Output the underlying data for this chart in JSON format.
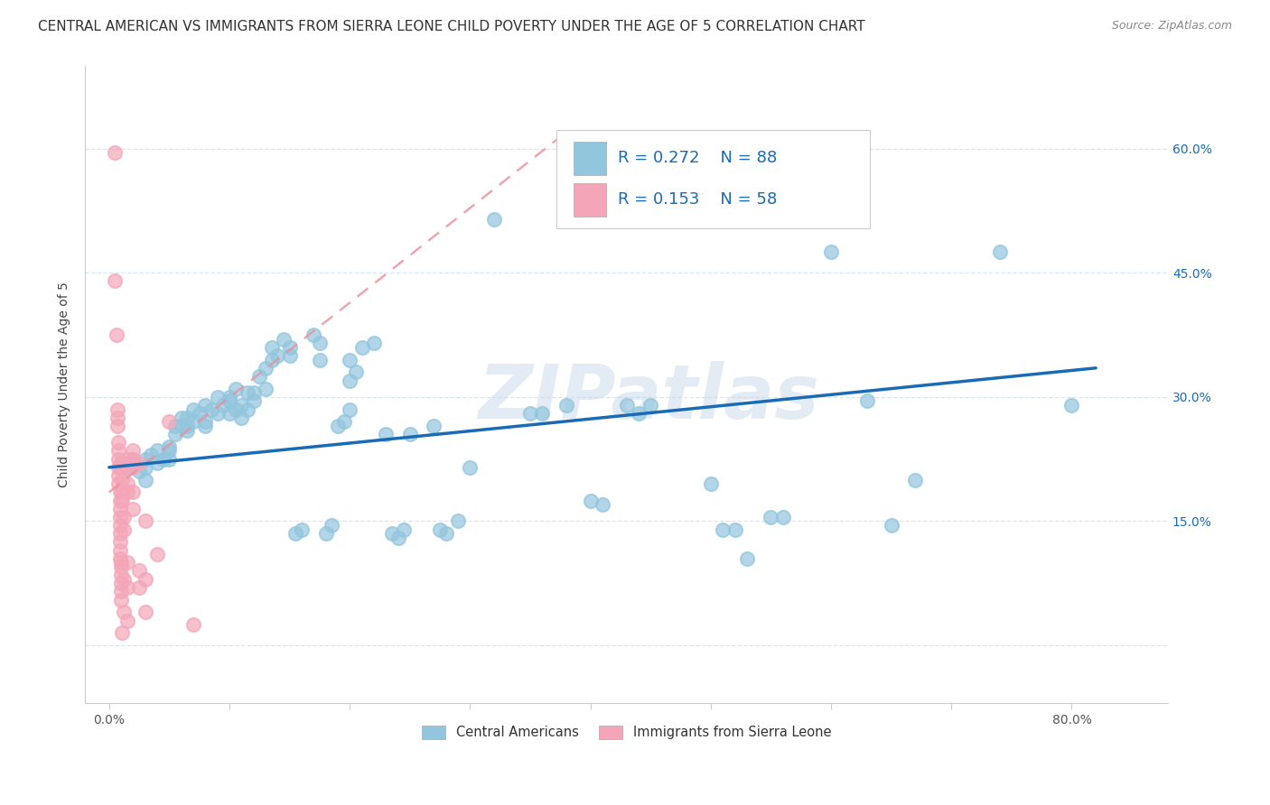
{
  "title": "CENTRAL AMERICAN VS IMMIGRANTS FROM SIERRA LEONE CHILD POVERTY UNDER THE AGE OF 5 CORRELATION CHART",
  "source": "Source: ZipAtlas.com",
  "ylabel": "Child Poverty Under the Age of 5",
  "xlim": [
    -0.02,
    0.88
  ],
  "ylim": [
    -0.07,
    0.7
  ],
  "x_tick_positions": [
    0.0,
    0.1,
    0.2,
    0.3,
    0.4,
    0.5,
    0.6,
    0.7,
    0.8
  ],
  "x_tick_labels": [
    "0.0%",
    "",
    "",
    "",
    "",
    "",
    "",
    "",
    "80.0%"
  ],
  "y_tick_positions": [
    0.0,
    0.15,
    0.3,
    0.45,
    0.6
  ],
  "y_tick_labels_right": [
    "",
    "15.0%",
    "30.0%",
    "45.0%",
    "60.0%"
  ],
  "blue_color": "#92c5de",
  "pink_color": "#f4a6b8",
  "trend_blue": "#1a6bb5",
  "trend_pink": "#e8909a",
  "blue_trend_x": [
    0.0,
    0.82
  ],
  "blue_trend_y": [
    0.215,
    0.335
  ],
  "pink_trend_x": [
    0.0,
    0.38
  ],
  "pink_trend_y": [
    0.185,
    0.62
  ],
  "blue_scatter": [
    [
      0.01,
      0.22
    ],
    [
      0.015,
      0.215
    ],
    [
      0.02,
      0.225
    ],
    [
      0.02,
      0.22
    ],
    [
      0.025,
      0.21
    ],
    [
      0.03,
      0.225
    ],
    [
      0.03,
      0.215
    ],
    [
      0.03,
      0.2
    ],
    [
      0.035,
      0.23
    ],
    [
      0.04,
      0.22
    ],
    [
      0.04,
      0.235
    ],
    [
      0.045,
      0.225
    ],
    [
      0.05,
      0.24
    ],
    [
      0.05,
      0.235
    ],
    [
      0.05,
      0.225
    ],
    [
      0.055,
      0.265
    ],
    [
      0.055,
      0.255
    ],
    [
      0.06,
      0.265
    ],
    [
      0.06,
      0.275
    ],
    [
      0.065,
      0.275
    ],
    [
      0.065,
      0.265
    ],
    [
      0.065,
      0.26
    ],
    [
      0.07,
      0.27
    ],
    [
      0.07,
      0.285
    ],
    [
      0.075,
      0.28
    ],
    [
      0.08,
      0.29
    ],
    [
      0.08,
      0.27
    ],
    [
      0.08,
      0.265
    ],
    [
      0.085,
      0.285
    ],
    [
      0.09,
      0.3
    ],
    [
      0.09,
      0.28
    ],
    [
      0.095,
      0.29
    ],
    [
      0.1,
      0.3
    ],
    [
      0.1,
      0.295
    ],
    [
      0.1,
      0.28
    ],
    [
      0.105,
      0.31
    ],
    [
      0.105,
      0.285
    ],
    [
      0.11,
      0.29
    ],
    [
      0.11,
      0.275
    ],
    [
      0.115,
      0.305
    ],
    [
      0.115,
      0.285
    ],
    [
      0.12,
      0.305
    ],
    [
      0.12,
      0.295
    ],
    [
      0.125,
      0.325
    ],
    [
      0.13,
      0.31
    ],
    [
      0.13,
      0.335
    ],
    [
      0.135,
      0.345
    ],
    [
      0.135,
      0.36
    ],
    [
      0.14,
      0.35
    ],
    [
      0.145,
      0.37
    ],
    [
      0.15,
      0.35
    ],
    [
      0.15,
      0.36
    ],
    [
      0.155,
      0.135
    ],
    [
      0.16,
      0.14
    ],
    [
      0.17,
      0.375
    ],
    [
      0.175,
      0.365
    ],
    [
      0.175,
      0.345
    ],
    [
      0.18,
      0.135
    ],
    [
      0.185,
      0.145
    ],
    [
      0.19,
      0.265
    ],
    [
      0.195,
      0.27
    ],
    [
      0.2,
      0.285
    ],
    [
      0.2,
      0.345
    ],
    [
      0.2,
      0.32
    ],
    [
      0.205,
      0.33
    ],
    [
      0.21,
      0.36
    ],
    [
      0.22,
      0.365
    ],
    [
      0.23,
      0.255
    ],
    [
      0.235,
      0.135
    ],
    [
      0.24,
      0.13
    ],
    [
      0.245,
      0.14
    ],
    [
      0.25,
      0.255
    ],
    [
      0.27,
      0.265
    ],
    [
      0.275,
      0.14
    ],
    [
      0.28,
      0.135
    ],
    [
      0.29,
      0.15
    ],
    [
      0.3,
      0.215
    ],
    [
      0.32,
      0.515
    ],
    [
      0.35,
      0.28
    ],
    [
      0.36,
      0.28
    ],
    [
      0.38,
      0.29
    ],
    [
      0.4,
      0.175
    ],
    [
      0.41,
      0.17
    ],
    [
      0.43,
      0.29
    ],
    [
      0.44,
      0.28
    ],
    [
      0.45,
      0.29
    ],
    [
      0.5,
      0.195
    ],
    [
      0.51,
      0.14
    ],
    [
      0.52,
      0.14
    ],
    [
      0.53,
      0.105
    ],
    [
      0.55,
      0.155
    ],
    [
      0.56,
      0.155
    ],
    [
      0.6,
      0.475
    ],
    [
      0.63,
      0.295
    ],
    [
      0.65,
      0.145
    ],
    [
      0.67,
      0.2
    ],
    [
      0.74,
      0.475
    ],
    [
      0.8,
      0.29
    ]
  ],
  "pink_scatter": [
    [
      0.005,
      0.595
    ],
    [
      0.005,
      0.44
    ],
    [
      0.006,
      0.375
    ],
    [
      0.007,
      0.285
    ],
    [
      0.007,
      0.275
    ],
    [
      0.007,
      0.265
    ],
    [
      0.008,
      0.245
    ],
    [
      0.008,
      0.235
    ],
    [
      0.008,
      0.225
    ],
    [
      0.008,
      0.215
    ],
    [
      0.008,
      0.205
    ],
    [
      0.008,
      0.195
    ],
    [
      0.009,
      0.185
    ],
    [
      0.009,
      0.175
    ],
    [
      0.009,
      0.165
    ],
    [
      0.009,
      0.155
    ],
    [
      0.009,
      0.145
    ],
    [
      0.009,
      0.135
    ],
    [
      0.009,
      0.125
    ],
    [
      0.009,
      0.115
    ],
    [
      0.009,
      0.105
    ],
    [
      0.01,
      0.1
    ],
    [
      0.01,
      0.095
    ],
    [
      0.01,
      0.085
    ],
    [
      0.01,
      0.075
    ],
    [
      0.01,
      0.065
    ],
    [
      0.01,
      0.055
    ],
    [
      0.01,
      0.22
    ],
    [
      0.01,
      0.215
    ],
    [
      0.011,
      0.2
    ],
    [
      0.011,
      0.185
    ],
    [
      0.011,
      0.175
    ],
    [
      0.011,
      0.015
    ],
    [
      0.012,
      0.155
    ],
    [
      0.012,
      0.14
    ],
    [
      0.012,
      0.08
    ],
    [
      0.012,
      0.04
    ],
    [
      0.015,
      0.225
    ],
    [
      0.015,
      0.215
    ],
    [
      0.015,
      0.195
    ],
    [
      0.015,
      0.185
    ],
    [
      0.015,
      0.1
    ],
    [
      0.015,
      0.07
    ],
    [
      0.015,
      0.03
    ],
    [
      0.02,
      0.235
    ],
    [
      0.02,
      0.225
    ],
    [
      0.02,
      0.215
    ],
    [
      0.02,
      0.185
    ],
    [
      0.02,
      0.165
    ],
    [
      0.025,
      0.22
    ],
    [
      0.025,
      0.09
    ],
    [
      0.025,
      0.07
    ],
    [
      0.03,
      0.15
    ],
    [
      0.03,
      0.08
    ],
    [
      0.03,
      0.04
    ],
    [
      0.04,
      0.11
    ],
    [
      0.05,
      0.27
    ],
    [
      0.07,
      0.025
    ]
  ],
  "watermark": "ZIPatlas",
  "background_color": "#ffffff",
  "grid_color": "#dde5f0",
  "title_fontsize": 11,
  "source_fontsize": 9,
  "axis_label_fontsize": 10,
  "tick_fontsize": 10
}
